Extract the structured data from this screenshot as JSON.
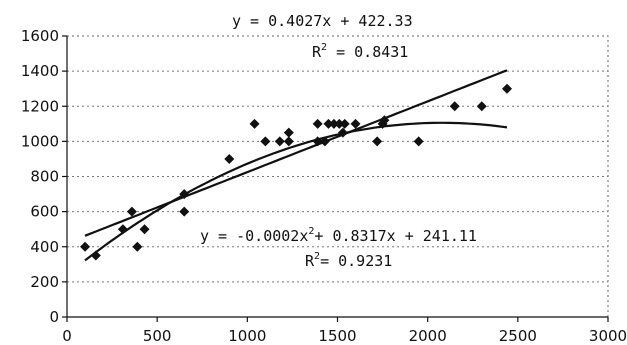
{
  "chart_data": {
    "type": "scatter",
    "title": "",
    "xlabel": "",
    "ylabel": "",
    "xlim": [
      0,
      3000
    ],
    "ylim": [
      0,
      1600
    ],
    "x_ticks": [
      0,
      500,
      1000,
      1500,
      2000,
      2500,
      3000
    ],
    "y_ticks": [
      0,
      200,
      400,
      600,
      800,
      1000,
      1200,
      1400,
      1600
    ],
    "grid": "horizontal dashed",
    "legend": "none",
    "marker": "diamond",
    "points": [
      {
        "x": 100,
        "y": 400
      },
      {
        "x": 160,
        "y": 350
      },
      {
        "x": 310,
        "y": 500
      },
      {
        "x": 360,
        "y": 600
      },
      {
        "x": 390,
        "y": 400
      },
      {
        "x": 430,
        "y": 500
      },
      {
        "x": 650,
        "y": 700
      },
      {
        "x": 650,
        "y": 600
      },
      {
        "x": 900,
        "y": 900
      },
      {
        "x": 1040,
        "y": 1100
      },
      {
        "x": 1100,
        "y": 1000
      },
      {
        "x": 1180,
        "y": 1000
      },
      {
        "x": 1230,
        "y": 1050
      },
      {
        "x": 1230,
        "y": 1000
      },
      {
        "x": 1390,
        "y": 1100
      },
      {
        "x": 1390,
        "y": 1000
      },
      {
        "x": 1430,
        "y": 1000
      },
      {
        "x": 1450,
        "y": 1100
      },
      {
        "x": 1480,
        "y": 1100
      },
      {
        "x": 1510,
        "y": 1100
      },
      {
        "x": 1530,
        "y": 1050
      },
      {
        "x": 1540,
        "y": 1100
      },
      {
        "x": 1600,
        "y": 1100
      },
      {
        "x": 1720,
        "y": 1000
      },
      {
        "x": 1750,
        "y": 1100
      },
      {
        "x": 1760,
        "y": 1120
      },
      {
        "x": 1950,
        "y": 1000
      },
      {
        "x": 2150,
        "y": 1200
      },
      {
        "x": 2300,
        "y": 1200
      },
      {
        "x": 2440,
        "y": 1300
      }
    ],
    "trendlines": [
      {
        "kind": "linear",
        "coefficients": {
          "a": 0.4027,
          "b": 422.33
        },
        "x_range": [
          100,
          2440
        ],
        "equation": "y = 0.4027x + 422.33",
        "r2_prefix": "R",
        "r2_sup": "2",
        "r2_suffix": " = 0.8431"
      },
      {
        "kind": "polynomial",
        "coefficients": {
          "a2": -0.0002,
          "a1": 0.8317,
          "a0": 241.11
        },
        "x_range": [
          100,
          2440
        ],
        "equation_part1": "y = -0.0002x",
        "equation_sup": "2",
        "equation_part2": "+ 0.8317x + 241.11",
        "r2_prefix": "R",
        "r2_sup": "2",
        "r2_suffix": "= 0.9231"
      }
    ]
  }
}
